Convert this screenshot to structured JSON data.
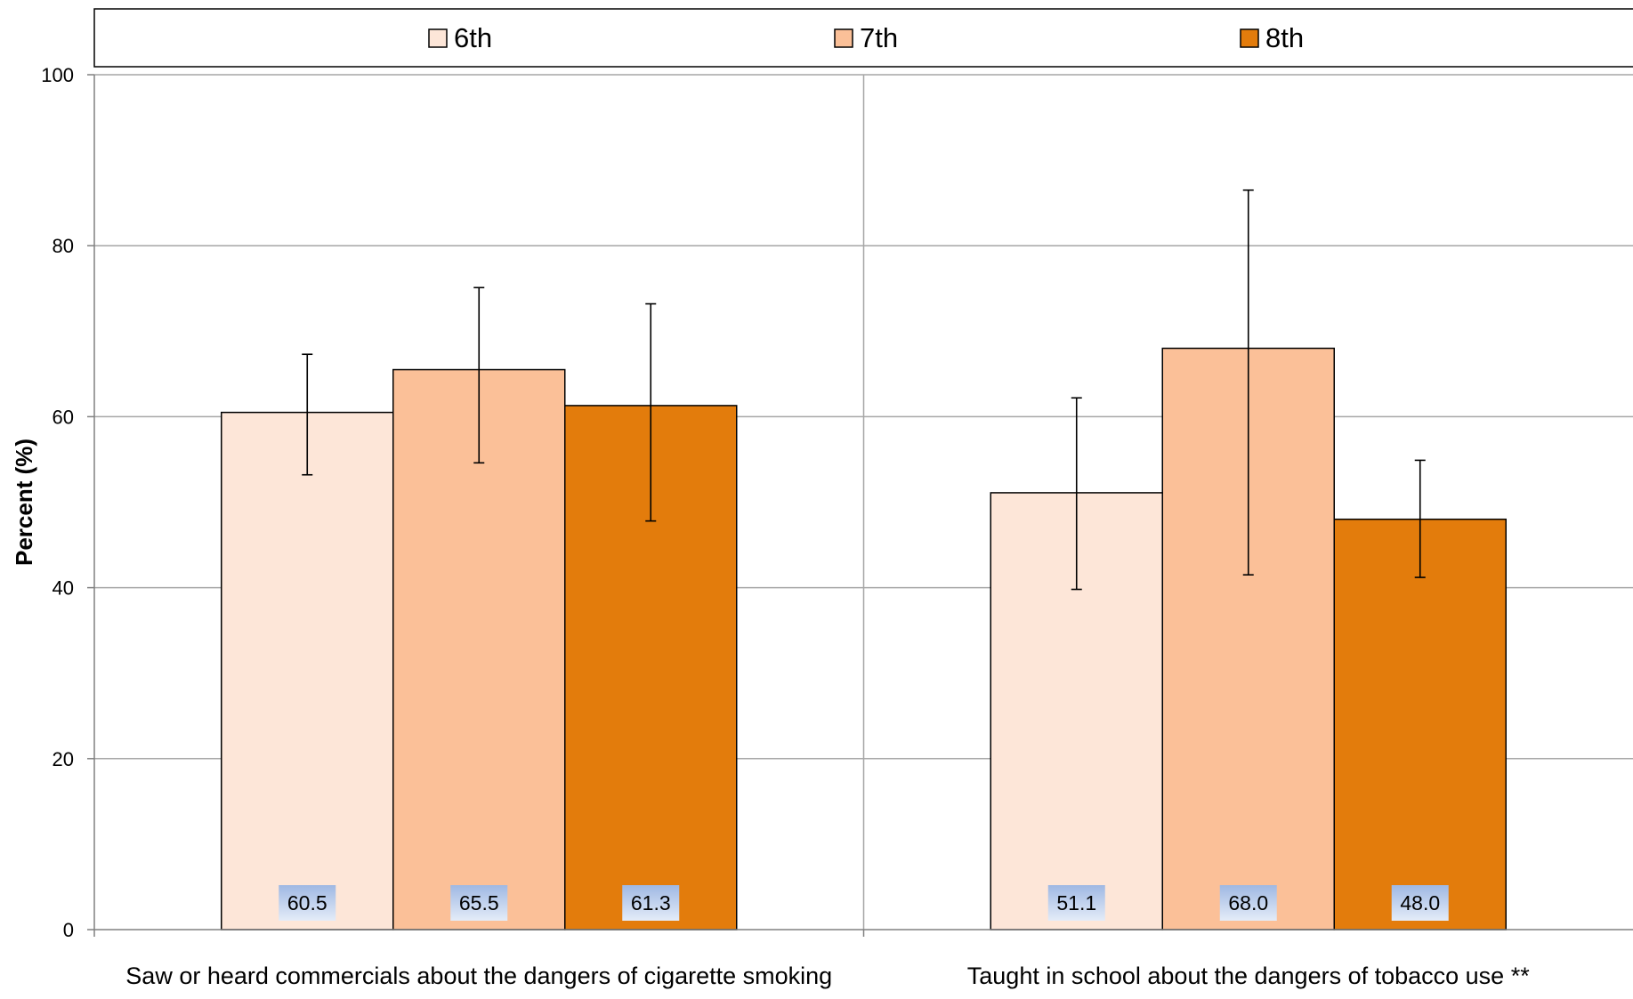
{
  "chart_data": {
    "type": "bar",
    "title": "",
    "xlabel": "",
    "ylabel": "Percent (%)",
    "ylim": [
      0,
      100
    ],
    "yticks": [
      0,
      20,
      40,
      60,
      80,
      100
    ],
    "grid": true,
    "legend_position": "top",
    "categories": [
      "Saw or heard commercials about the dangers of cigarette smoking",
      "Taught in school about the dangers of tobacco use **"
    ],
    "series": [
      {
        "name": "6th",
        "color": "#FDE6D8",
        "values": [
          60.5,
          51.1
        ],
        "labels": [
          "60.5",
          "51.1"
        ],
        "error_low": [
          53.2,
          39.8
        ],
        "error_high": [
          67.3,
          62.2
        ]
      },
      {
        "name": "7th",
        "color": "#FBC098",
        "values": [
          65.5,
          68.0
        ],
        "labels": [
          "65.5",
          "68.0"
        ],
        "error_low": [
          54.6,
          41.5
        ],
        "error_high": [
          75.1,
          86.5
        ]
      },
      {
        "name": "8th",
        "color": "#E37C0C",
        "values": [
          61.3,
          48.0
        ],
        "labels": [
          "61.3",
          "48.0"
        ],
        "error_low": [
          47.8,
          41.2
        ],
        "error_high": [
          73.2,
          54.9
        ]
      }
    ]
  }
}
